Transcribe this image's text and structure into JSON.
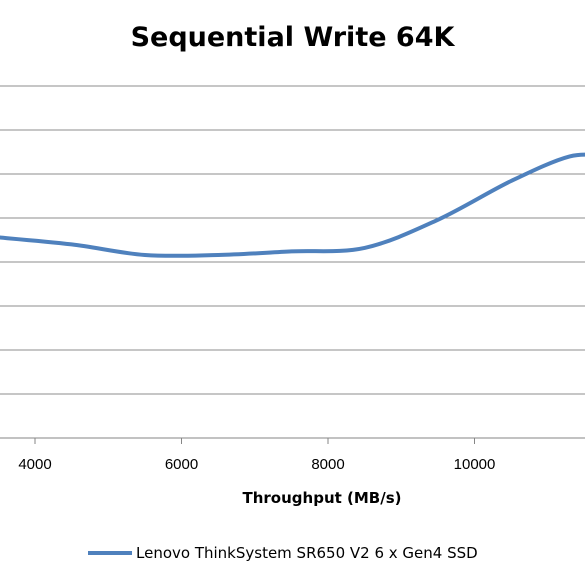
{
  "chart_data": {
    "type": "line",
    "title": "Sequential Write 64K",
    "xlabel": "Throughput (MB/s)",
    "ylabel": "",
    "x_ticks": [
      4000,
      6000,
      8000,
      10000
    ],
    "xlim": [
      3500,
      11800
    ],
    "grid": true,
    "legend_position": "bottom",
    "series": [
      {
        "name": "Lenovo ThinkSystem SR650 V2 6 x Gen4 SSD",
        "color": "#4f81bd",
        "points": [
          {
            "x": 3500,
            "y": 0.57
          },
          {
            "x": 4500,
            "y": 0.55
          },
          {
            "x": 5500,
            "y": 0.52
          },
          {
            "x": 6500,
            "y": 0.52
          },
          {
            "x": 7500,
            "y": 0.53
          },
          {
            "x": 8500,
            "y": 0.54
          },
          {
            "x": 9500,
            "y": 0.62
          },
          {
            "x": 10500,
            "y": 0.73
          },
          {
            "x": 11300,
            "y": 0.8
          },
          {
            "x": 11800,
            "y": 0.8
          }
        ]
      }
    ]
  }
}
